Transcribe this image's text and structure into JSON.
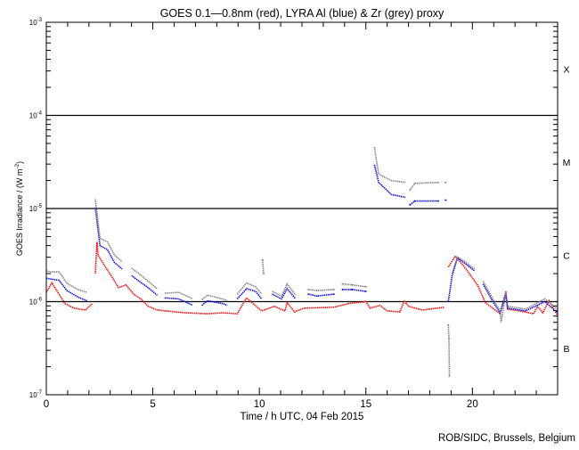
{
  "chart_data": {
    "type": "line",
    "title": "GOES 0.1—0.8nm (red), LYRA Al (blue) & Zr (grey) proxy",
    "xlabel": "Time / h UTC, 04 Feb 2015",
    "ylabel": "GOES Irradiance / (W m",
    "ylabel_sup": "-2",
    "ylabel_end": ")",
    "xlim": [
      0,
      24
    ],
    "ylim": [
      1e-07,
      0.001
    ],
    "yscale": "log",
    "xticks": [
      0,
      5,
      10,
      15,
      20
    ],
    "xtick_labels": [
      "0",
      "5",
      "10",
      "15",
      "20"
    ],
    "ytick_labels": [
      {
        "base": "10",
        "exp": "-7",
        "value": 1e-07
      },
      {
        "base": "10",
        "exp": "-6",
        "value": 1e-06
      },
      {
        "base": "10",
        "exp": "-5",
        "value": 1e-05
      },
      {
        "base": "10",
        "exp": "-4",
        "value": 0.0001
      },
      {
        "base": "10",
        "exp": "-3",
        "value": 0.001
      }
    ],
    "flare_classes": [
      {
        "label": "B",
        "value": 3.16e-07
      },
      {
        "label": "C",
        "value": 3.16e-06
      },
      {
        "label": "M",
        "value": 3.16e-05
      },
      {
        "label": "X",
        "value": 0.000316
      }
    ],
    "reference_lines": [
      1e-06,
      1e-05,
      0.0001
    ],
    "footer": "ROB/SIDC, Brussels, Belgium",
    "series": [
      {
        "name": "GOES 0.1-0.8nm",
        "color": "#ff0000",
        "segments_log10": [
          [
            [
              0,
              -5.9
            ],
            [
              0.26,
              -5.8
            ],
            [
              0.43,
              -5.86
            ],
            [
              0.6,
              -5.92
            ],
            [
              0.87,
              -6.02
            ],
            [
              1.3,
              -6.07
            ],
            [
              1.83,
              -6.09
            ],
            [
              2.17,
              -6.02
            ]
          ],
          [
            [
              2.3,
              -5.7
            ],
            [
              2.38,
              -5.36
            ],
            [
              2.43,
              -5.5
            ],
            [
              2.78,
              -5.63
            ],
            [
              3.04,
              -5.72
            ],
            [
              3.39,
              -5.85
            ],
            [
              3.74,
              -5.82
            ],
            [
              4.1,
              -5.92
            ],
            [
              4.43,
              -5.97
            ],
            [
              4.78,
              -6.05
            ],
            [
              5.2,
              -6.09
            ],
            [
              6.5,
              -6.12
            ],
            [
              7.57,
              -6.13
            ],
            [
              8.26,
              -6.12
            ],
            [
              8.96,
              -6.13
            ],
            [
              9.4,
              -5.96
            ],
            [
              10.1,
              -6.1
            ],
            [
              10.7,
              -6.05
            ],
            [
              11.2,
              -6.1
            ],
            [
              11.3,
              -6.01
            ],
            [
              11.65,
              -6.11
            ],
            [
              12.1,
              -6.07
            ],
            [
              13.5,
              -6.06
            ],
            [
              14.2,
              -6.02
            ],
            [
              15.0,
              -6.0
            ],
            [
              15.2,
              -6.07
            ],
            [
              15.65,
              -6.04
            ],
            [
              16.0,
              -6.1
            ],
            [
              16.6,
              -6.11
            ],
            [
              16.8,
              -5.99
            ],
            [
              17.0,
              -6.05
            ],
            [
              17.65,
              -6.09
            ],
            [
              18.7,
              -6.06
            ]
          ],
          [
            [
              18.87,
              -5.63
            ],
            [
              19.2,
              -5.51
            ],
            [
              19.7,
              -5.65
            ],
            [
              20.26,
              -5.83
            ],
            [
              20.6,
              -6.01
            ],
            [
              21.3,
              -6.13
            ],
            [
              21.57,
              -5.89
            ],
            [
              21.65,
              -6.08
            ],
            [
              22.2,
              -6.1
            ],
            [
              22.87,
              -6.13
            ],
            [
              23.05,
              -6.05
            ],
            [
              23.3,
              -6.12
            ],
            [
              23.6,
              -5.99
            ],
            [
              24,
              -6.15
            ]
          ]
        ]
      },
      {
        "name": "LYRA Al proxy",
        "color": "#0000ff",
        "segments_log10": [
          [
            [
              0,
              -5.75
            ],
            [
              0.6,
              -5.77
            ],
            [
              0.96,
              -5.88
            ],
            [
              1.48,
              -5.95
            ],
            [
              1.9,
              -5.99
            ]
          ],
          [
            [
              2.3,
              -4.99
            ],
            [
              2.52,
              -5.4
            ],
            [
              2.87,
              -5.44
            ],
            [
              3.2,
              -5.58
            ],
            [
              3.56,
              -5.65
            ]
          ],
          [
            [
              4.0,
              -5.72
            ],
            [
              4.35,
              -5.78
            ],
            [
              4.78,
              -5.85
            ],
            [
              5.2,
              -5.93
            ]
          ],
          [
            [
              5.56,
              -5.96
            ],
            [
              6.2,
              -5.97
            ],
            [
              6.5,
              -6.0
            ],
            [
              6.87,
              -6.04
            ]
          ],
          [
            [
              7.3,
              -6.04
            ],
            [
              7.57,
              -5.99
            ],
            [
              8.26,
              -6.02
            ],
            [
              8.5,
              -6.04
            ]
          ],
          [
            [
              8.96,
              -5.97
            ],
            [
              9.4,
              -5.86
            ],
            [
              9.83,
              -5.89
            ],
            [
              10.1,
              -5.97
            ]
          ],
          [
            [
              10.6,
              -5.92
            ],
            [
              11.04,
              -5.97
            ],
            [
              11.3,
              -5.86
            ],
            [
              11.7,
              -5.97
            ]
          ],
          [
            [
              12.3,
              -5.92
            ],
            [
              12.7,
              -5.94
            ],
            [
              13.5,
              -5.92
            ]
          ],
          [
            [
              13.9,
              -5.87
            ],
            [
              14.35,
              -5.87
            ],
            [
              15.0,
              -5.89
            ]
          ],
          [
            [
              15.4,
              -4.53
            ],
            [
              15.6,
              -4.72
            ],
            [
              16.2,
              -4.85
            ],
            [
              16.85,
              -4.88
            ]
          ],
          [
            [
              17.07,
              -4.96
            ],
            [
              17.3,
              -4.92
            ],
            [
              18.4,
              -4.92
            ]
          ],
          [
            [
              18.74,
              -4.91
            ],
            [
              18.75,
              -4.91
            ]
          ],
          [
            [
              18.87,
              -6.0
            ],
            [
              19.05,
              -5.72
            ],
            [
              19.3,
              -5.53
            ],
            [
              19.65,
              -5.59
            ],
            [
              20.1,
              -5.67
            ]
          ],
          [
            [
              20.5,
              -5.81
            ],
            [
              20.96,
              -6.0
            ],
            [
              21.3,
              -6.12
            ],
            [
              21.57,
              -5.92
            ],
            [
              21.65,
              -6.07
            ],
            [
              22.5,
              -6.1
            ],
            [
              23.4,
              -6.0
            ],
            [
              24,
              -6.12
            ]
          ]
        ]
      },
      {
        "name": "LYRA Zr proxy",
        "color": "#808080",
        "segments_log10": [
          [
            [
              0,
              -5.67
            ],
            [
              0.2,
              -5.68
            ],
            [
              0.6,
              -5.68
            ],
            [
              0.96,
              -5.8
            ],
            [
              1.48,
              -5.87
            ],
            [
              1.9,
              -5.9
            ]
          ],
          [
            [
              2.3,
              -4.9
            ],
            [
              2.52,
              -5.32
            ],
            [
              2.87,
              -5.36
            ],
            [
              3.2,
              -5.5
            ],
            [
              3.56,
              -5.57
            ]
          ],
          [
            [
              4.0,
              -5.64
            ],
            [
              4.35,
              -5.7
            ],
            [
              4.78,
              -5.78
            ],
            [
              5.2,
              -5.86
            ]
          ],
          [
            [
              5.56,
              -5.91
            ],
            [
              6.2,
              -5.9
            ],
            [
              6.5,
              -5.93
            ],
            [
              6.87,
              -5.97
            ]
          ],
          [
            [
              7.3,
              -5.98
            ],
            [
              7.57,
              -5.93
            ],
            [
              8.26,
              -5.97
            ],
            [
              8.5,
              -5.99
            ]
          ],
          [
            [
              8.96,
              -5.92
            ],
            [
              9.4,
              -5.8
            ],
            [
              9.83,
              -5.84
            ],
            [
              10.1,
              -5.92
            ]
          ],
          [
            [
              10.15,
              -5.55
            ],
            [
              10.2,
              -5.7
            ]
          ],
          [
            [
              10.6,
              -5.89
            ],
            [
              11.04,
              -5.94
            ],
            [
              11.3,
              -5.81
            ],
            [
              11.7,
              -5.93
            ]
          ],
          [
            [
              12.3,
              -5.87
            ],
            [
              12.7,
              -5.88
            ],
            [
              13.5,
              -5.87
            ]
          ],
          [
            [
              13.9,
              -5.81
            ],
            [
              14.35,
              -5.82
            ],
            [
              15.0,
              -5.84
            ]
          ],
          [
            [
              15.4,
              -4.34
            ],
            [
              15.6,
              -4.63
            ],
            [
              16.2,
              -4.7
            ],
            [
              16.85,
              -4.72
            ]
          ],
          [
            [
              17.07,
              -4.8
            ],
            [
              17.3,
              -4.73
            ],
            [
              18.4,
              -4.72
            ]
          ],
          [
            [
              18.74,
              -4.72
            ],
            [
              18.75,
              -4.72
            ]
          ],
          [
            [
              18.87,
              -6.25
            ],
            [
              18.9,
              -6.4
            ],
            [
              18.92,
              -6.8
            ]
          ],
          [
            [
              19.05,
              -5.7
            ],
            [
              19.3,
              -5.52
            ],
            [
              19.65,
              -5.57
            ],
            [
              20.1,
              -5.65
            ]
          ],
          [
            [
              20.5,
              -5.78
            ],
            [
              20.96,
              -5.97
            ],
            [
              21.3,
              -6.1
            ],
            [
              21.35,
              -6.22
            ],
            [
              21.57,
              -5.9
            ],
            [
              21.65,
              -6.05
            ],
            [
              22.5,
              -6.08
            ],
            [
              23.4,
              -5.97
            ],
            [
              24,
              -6.08
            ]
          ]
        ]
      }
    ]
  }
}
